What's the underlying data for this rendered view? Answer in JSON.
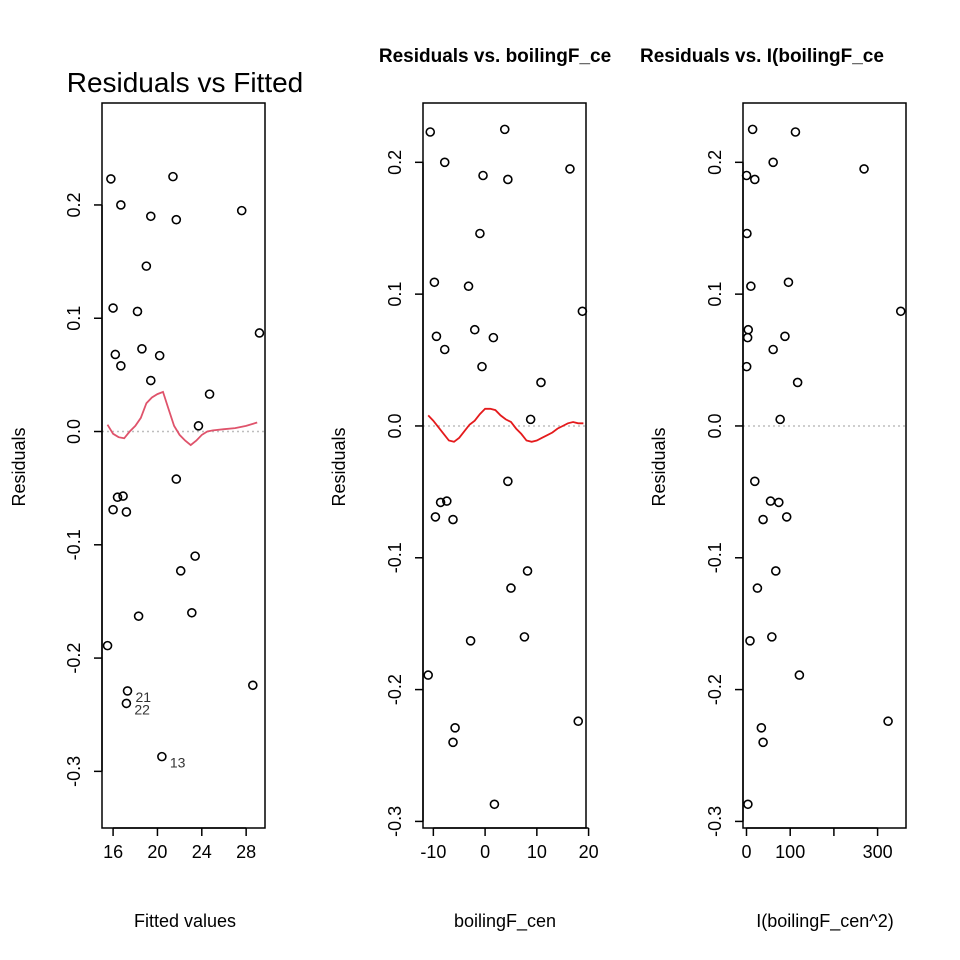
{
  "chart_data": [
    {
      "type": "scatter",
      "title": "Residuals vs Fitted",
      "xlabel": "Fitted values",
      "ylabel": "Residuals",
      "xlim": [
        15.0,
        29.7
      ],
      "ylim": [
        -0.35,
        0.29
      ],
      "xticks": [
        16,
        20,
        24,
        28
      ],
      "xtick_labels": [
        "16",
        "20",
        "24",
        "28"
      ],
      "yticks": [
        -0.3,
        -0.2,
        -0.1,
        0.0,
        0.1,
        0.2
      ],
      "ytick_labels": [
        "-0.3",
        "-0.2",
        "-0.1",
        "0.0",
        "0.1",
        "0.2"
      ],
      "points": [
        {
          "x": 15.5,
          "y": -0.189
        },
        {
          "x": 15.8,
          "y": 0.223
        },
        {
          "x": 16.0,
          "y": 0.109
        },
        {
          "x": 16.0,
          "y": -0.069
        },
        {
          "x": 16.2,
          "y": 0.068
        },
        {
          "x": 16.4,
          "y": -0.058
        },
        {
          "x": 16.7,
          "y": 0.2
        },
        {
          "x": 16.7,
          "y": 0.058
        },
        {
          "x": 16.9,
          "y": -0.057
        },
        {
          "x": 17.2,
          "y": -0.071
        },
        {
          "x": 17.3,
          "y": -0.229,
          "label": "21"
        },
        {
          "x": 17.2,
          "y": -0.24,
          "label": "22"
        },
        {
          "x": 18.2,
          "y": 0.106
        },
        {
          "x": 18.3,
          "y": -0.163
        },
        {
          "x": 18.6,
          "y": 0.073
        },
        {
          "x": 19.0,
          "y": 0.146
        },
        {
          "x": 19.4,
          "y": 0.045
        },
        {
          "x": 19.4,
          "y": 0.19
        },
        {
          "x": 20.2,
          "y": 0.067
        },
        {
          "x": 20.4,
          "y": -0.287,
          "label": "13"
        },
        {
          "x": 21.4,
          "y": 0.225
        },
        {
          "x": 21.7,
          "y": 0.187
        },
        {
          "x": 21.7,
          "y": -0.042
        },
        {
          "x": 22.1,
          "y": -0.123
        },
        {
          "x": 23.1,
          "y": -0.16
        },
        {
          "x": 23.4,
          "y": -0.11
        },
        {
          "x": 23.7,
          "y": 0.005
        },
        {
          "x": 24.7,
          "y": 0.033
        },
        {
          "x": 27.6,
          "y": 0.195
        },
        {
          "x": 28.6,
          "y": -0.224
        },
        {
          "x": 29.2,
          "y": 0.087
        }
      ],
      "smoother": {
        "color": "#DF536B",
        "x": [
          15.5,
          16.0,
          16.5,
          17.0,
          17.5,
          18.0,
          18.5,
          19.0,
          19.5,
          20.0,
          20.5,
          21.0,
          21.5,
          22.0,
          22.5,
          23.0,
          23.5,
          24.0,
          24.5,
          25.0,
          26.0,
          27.0,
          28.0,
          29.0
        ],
        "y": [
          0.006,
          -0.002,
          -0.005,
          -0.006,
          0.0,
          0.005,
          0.012,
          0.025,
          0.03,
          0.033,
          0.035,
          0.02,
          0.005,
          -0.003,
          -0.008,
          -0.012,
          -0.008,
          -0.003,
          0.0,
          0.001,
          0.002,
          0.003,
          0.005,
          0.008
        ]
      },
      "hline": {
        "y": 0.0,
        "style": "dotted",
        "color": "#BEBEBE"
      }
    },
    {
      "type": "scatter",
      "title": "Residuals vs. boilingF_ce",
      "xlabel": "boilingF_cen",
      "ylabel": "Residuals",
      "xlim": [
        -12.0,
        19.5
      ],
      "ylim": [
        -0.305,
        0.245
      ],
      "xticks": [
        -10,
        0,
        10,
        20
      ],
      "xtick_labels": [
        "-10",
        "0",
        "10",
        "20"
      ],
      "yticks": [
        -0.3,
        -0.2,
        -0.1,
        0.0,
        0.1,
        0.2
      ],
      "ytick_labels": [
        "-0.3",
        "-0.2",
        "-0.1",
        "0.0",
        "0.1",
        "0.2"
      ],
      "points": [
        {
          "x": -11.0,
          "y": -0.189
        },
        {
          "x": -10.6,
          "y": 0.223
        },
        {
          "x": -9.8,
          "y": 0.109
        },
        {
          "x": -9.6,
          "y": -0.069
        },
        {
          "x": -9.4,
          "y": 0.068
        },
        {
          "x": -8.6,
          "y": -0.058
        },
        {
          "x": -7.8,
          "y": 0.2
        },
        {
          "x": -7.8,
          "y": 0.058
        },
        {
          "x": -7.4,
          "y": -0.057
        },
        {
          "x": -6.2,
          "y": -0.071
        },
        {
          "x": -5.8,
          "y": -0.229
        },
        {
          "x": -6.2,
          "y": -0.24
        },
        {
          "x": -3.2,
          "y": 0.106
        },
        {
          "x": -2.8,
          "y": -0.163
        },
        {
          "x": -2.0,
          "y": 0.073
        },
        {
          "x": -1.0,
          "y": 0.146
        },
        {
          "x": -0.6,
          "y": 0.045
        },
        {
          "x": -0.4,
          "y": 0.19
        },
        {
          "x": 1.6,
          "y": 0.067
        },
        {
          "x": 1.8,
          "y": -0.287
        },
        {
          "x": 3.8,
          "y": 0.225
        },
        {
          "x": 4.4,
          "y": 0.187
        },
        {
          "x": 4.4,
          "y": -0.042
        },
        {
          "x": 5.0,
          "y": -0.123
        },
        {
          "x": 7.6,
          "y": -0.16
        },
        {
          "x": 8.2,
          "y": -0.11
        },
        {
          "x": 8.8,
          "y": 0.005
        },
        {
          "x": 10.8,
          "y": 0.033
        },
        {
          "x": 16.4,
          "y": 0.195
        },
        {
          "x": 18.0,
          "y": -0.224
        },
        {
          "x": 18.8,
          "y": 0.087
        }
      ],
      "smoother": {
        "color": "#E41A1C",
        "x": [
          -11.0,
          -10.0,
          -9.0,
          -8.0,
          -7.0,
          -6.0,
          -5.0,
          -4.0,
          -3.0,
          -2.0,
          -1.0,
          0.0,
          1.0,
          2.0,
          3.0,
          4.0,
          5.0,
          6.0,
          7.0,
          8.0,
          9.0,
          10.0,
          11.0,
          12.0,
          13.0,
          14.0,
          15.0,
          16.0,
          17.0,
          18.0,
          19.0
        ],
        "y": [
          0.008,
          0.004,
          -0.001,
          -0.006,
          -0.011,
          -0.012,
          -0.009,
          -0.004,
          0.001,
          0.004,
          0.009,
          0.013,
          0.013,
          0.012,
          0.008,
          0.005,
          0.003,
          -0.002,
          -0.006,
          -0.011,
          -0.012,
          -0.011,
          -0.009,
          -0.007,
          -0.005,
          -0.002,
          0.0,
          0.002,
          0.003,
          0.002,
          0.002
        ]
      },
      "hline": {
        "y": 0.0,
        "style": "dotted",
        "color": "#BEBEBE"
      }
    },
    {
      "type": "scatter",
      "title": "Residuals vs. I(boilingF_ce",
      "xlabel": "I(boilingF_cen^2)",
      "ylabel": "Residuals",
      "xlim": [
        -8.0,
        365.0
      ],
      "ylim": [
        -0.305,
        0.245
      ],
      "xticks": [
        0,
        100,
        200,
        300
      ],
      "xtick_labels": [
        "0",
        "100",
        "",
        "300"
      ],
      "yticks": [
        -0.3,
        -0.2,
        -0.1,
        0.0,
        0.1,
        0.2
      ],
      "ytick_labels": [
        "-0.3",
        "-0.2",
        "-0.1",
        "0.0",
        "0.1",
        "0.2"
      ],
      "points": [
        {
          "x": 121,
          "y": -0.189
        },
        {
          "x": 112,
          "y": 0.223
        },
        {
          "x": 96,
          "y": 0.109
        },
        {
          "x": 92,
          "y": -0.069
        },
        {
          "x": 88,
          "y": 0.068
        },
        {
          "x": 74,
          "y": -0.058
        },
        {
          "x": 61,
          "y": 0.2
        },
        {
          "x": 61,
          "y": 0.058
        },
        {
          "x": 55,
          "y": -0.057
        },
        {
          "x": 38,
          "y": -0.071
        },
        {
          "x": 34,
          "y": -0.229
        },
        {
          "x": 38,
          "y": -0.24
        },
        {
          "x": 10,
          "y": 0.106
        },
        {
          "x": 8,
          "y": -0.163
        },
        {
          "x": 4,
          "y": 0.073
        },
        {
          "x": 1,
          "y": 0.146
        },
        {
          "x": 0.4,
          "y": 0.045
        },
        {
          "x": 0.2,
          "y": 0.19
        },
        {
          "x": 2.6,
          "y": 0.067
        },
        {
          "x": 3.2,
          "y": -0.287
        },
        {
          "x": 14,
          "y": 0.225
        },
        {
          "x": 19,
          "y": 0.187
        },
        {
          "x": 19,
          "y": -0.042
        },
        {
          "x": 25,
          "y": -0.123
        },
        {
          "x": 58,
          "y": -0.16
        },
        {
          "x": 67,
          "y": -0.11
        },
        {
          "x": 77,
          "y": 0.005
        },
        {
          "x": 117,
          "y": 0.033
        },
        {
          "x": 269,
          "y": 0.195
        },
        {
          "x": 324,
          "y": -0.224
        },
        {
          "x": 353,
          "y": 0.087
        }
      ],
      "hline": {
        "y": 0.0,
        "style": "dotted",
        "color": "#BEBEBE"
      }
    }
  ]
}
